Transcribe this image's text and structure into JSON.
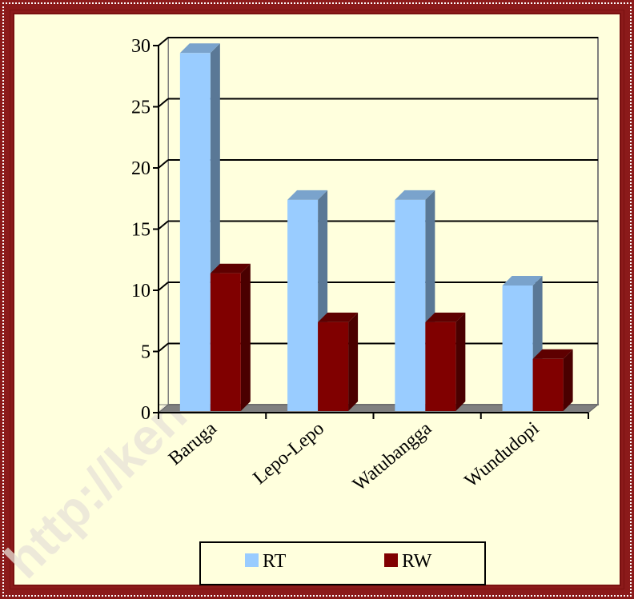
{
  "watermark": "http://kendarikota.bps.go.id",
  "chart_data": {
    "type": "bar",
    "style": "3d-clustered-column",
    "categories": [
      "Baruga",
      "Lepo-Lepo",
      "Watubangga",
      "Wundudopi"
    ],
    "series": [
      {
        "name": "RT",
        "values": [
          29,
          17,
          17,
          10
        ],
        "color": "#99ccff",
        "side_color": "#5a7896",
        "top_color": "#7aa3cc"
      },
      {
        "name": "RW",
        "values": [
          11,
          7,
          7,
          4
        ],
        "color": "#800000",
        "side_color": "#4a0000",
        "top_color": "#5e0000"
      }
    ],
    "y_ticks": [
      "0",
      "5",
      "10",
      "15",
      "20",
      "25",
      "30"
    ],
    "ylim": [
      0,
      30
    ],
    "title": "",
    "xlabel": "",
    "ylabel": "",
    "grid": true,
    "legend_position": "bottom-center"
  }
}
